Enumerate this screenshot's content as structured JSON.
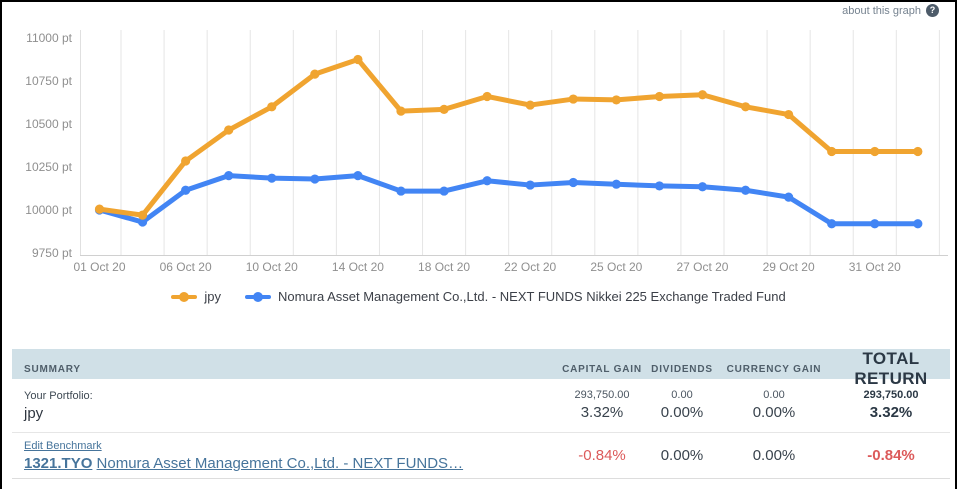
{
  "help": {
    "label": "about this graph",
    "icon": "?"
  },
  "colors": {
    "series_jpy": "#F0A430",
    "series_fund": "#4285F4",
    "negative_red": "#DC5A5A",
    "link_blue": "#46749B",
    "table_header_bg": "#D0E0E7",
    "axis_label_gray": "#8F8F8F",
    "gridline_gray": "#E5E5E5"
  },
  "chart_data": {
    "type": "line",
    "title": "",
    "unit": "pt",
    "ylim": [
      9750,
      11000
    ],
    "y_ticks": [
      9750,
      10000,
      10250,
      10500,
      10750,
      11000
    ],
    "y_tick_suffix": " pt",
    "x_tick_labels": [
      "01 Oct 20",
      "06 Oct 20",
      "10 Oct 20",
      "14 Oct 20",
      "18 Oct 20",
      "22 Oct 20",
      "25 Oct 20",
      "27 Oct 20",
      "29 Oct 20",
      "31 Oct 20"
    ],
    "label_every_n_points": 2,
    "grid": "vertical-only",
    "legend_position": "bottom-center",
    "series": [
      {
        "name": "jpy",
        "color": "#F0A430",
        "values": [
          10005,
          9970,
          10285,
          10465,
          10600,
          10790,
          10875,
          10575,
          10585,
          10660,
          10610,
          10645,
          10640,
          10660,
          10670,
          10600,
          10555,
          10340,
          10340,
          10340
        ]
      },
      {
        "name": "Nomura Asset Management Co.,Ltd. - NEXT FUNDS Nikkei 225 Exchange Traded Fund",
        "color": "#4285F4",
        "values": [
          10000,
          9930,
          10115,
          10200,
          10185,
          10180,
          10200,
          10110,
          10110,
          10170,
          10145,
          10160,
          10150,
          10140,
          10135,
          10115,
          10075,
          9920,
          9920,
          9920
        ]
      }
    ]
  },
  "summary_table": {
    "headers": {
      "summary": "SUMMARY",
      "capital_gain": "CAPITAL GAIN",
      "dividends": "DIVIDENDS",
      "currency_gain": "CURRENCY GAIN",
      "total_return": "TOTAL RETURN"
    },
    "rows": [
      {
        "label_small": "Your Portfolio:",
        "label_main": "jpy",
        "capital_gain": {
          "amount": "293,750.00",
          "percent": "3.32%"
        },
        "dividends": {
          "amount": "0.00",
          "percent": "0.00%"
        },
        "currency_gain": {
          "amount": "0.00",
          "percent": "0.00%"
        },
        "total_return": {
          "amount": "293,750.00",
          "percent": "3.32%"
        }
      },
      {
        "edit_link": "Edit Benchmark",
        "ticker": "1321.TYO",
        "name": "Nomura Asset Management Co.,Ltd. - NEXT FUNDS…",
        "capital_gain": {
          "percent": "-0.84%"
        },
        "dividends": {
          "percent": "0.00%"
        },
        "currency_gain": {
          "percent": "0.00%"
        },
        "total_return": {
          "percent": "-0.84%"
        }
      }
    ]
  }
}
